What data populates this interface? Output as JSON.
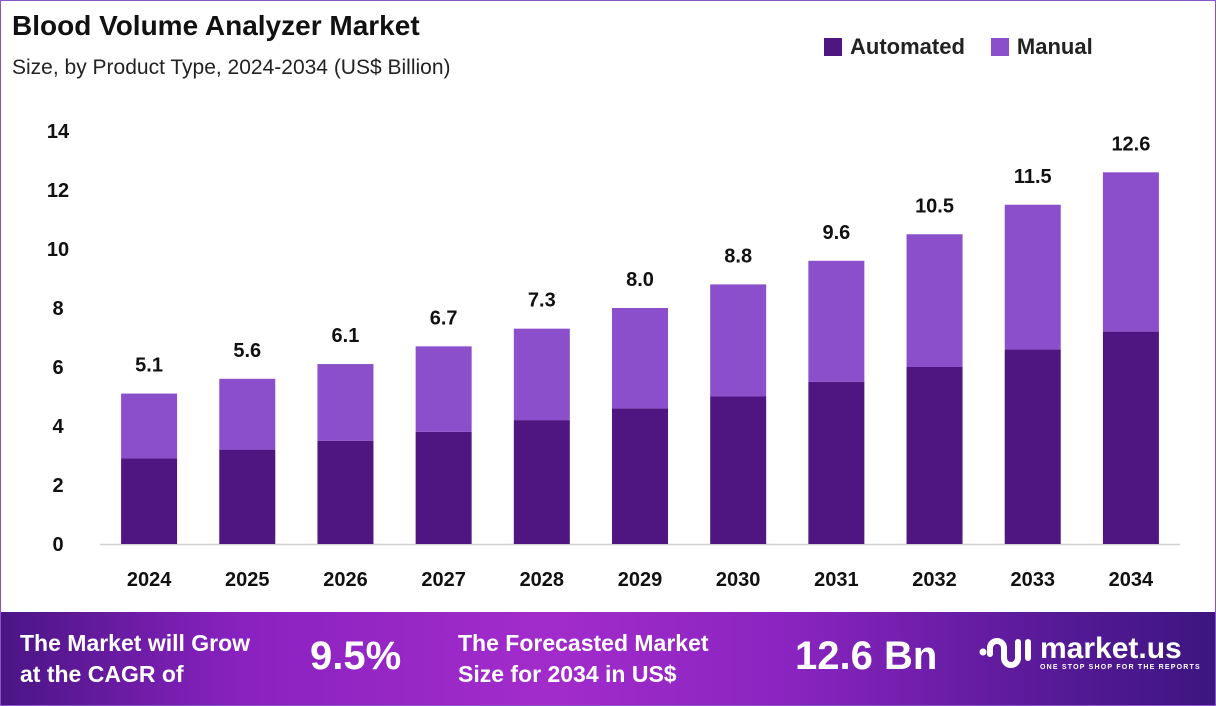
{
  "chart_data": {
    "type": "bar",
    "stacked": true,
    "title": "Blood Volume Analyzer Market",
    "subtitle": "Size, by Product Type, 2024-2034 (US$ Billion)",
    "xlabel": "",
    "ylabel": "",
    "ylim": [
      0,
      14
    ],
    "yticks": [
      0,
      2,
      4,
      6,
      8,
      10,
      12,
      14
    ],
    "grid": false,
    "legend_position": "top-right",
    "categories": [
      "2024",
      "2025",
      "2026",
      "2027",
      "2028",
      "2029",
      "2030",
      "2031",
      "2032",
      "2033",
      "2034"
    ],
    "series": [
      {
        "name": "Automated",
        "color": "#4f1581",
        "values": [
          2.9,
          3.2,
          3.5,
          3.8,
          4.2,
          4.6,
          5.0,
          5.5,
          6.0,
          6.6,
          7.2
        ]
      },
      {
        "name": "Manual",
        "color": "#8c4fcc",
        "values": [
          2.2,
          2.4,
          2.6,
          2.9,
          3.1,
          3.4,
          3.8,
          4.1,
          4.5,
          4.9,
          5.4
        ]
      }
    ],
    "totals": [
      "5.1",
      "5.6",
      "6.1",
      "6.7",
      "7.3",
      "8.0",
      "8.8",
      "9.6",
      "10.5",
      "11.5",
      "12.6"
    ]
  },
  "footer": {
    "cagr_label_1": "The Market will Grow",
    "cagr_label_2": "at the CAGR of",
    "cagr_value": "9.5%",
    "forecast_label_1": "The Forecasted Market",
    "forecast_label_2": "Size for 2034 in US$",
    "forecast_value": "12.6 Bn",
    "brand": "market.us",
    "tagline": "ONE STOP SHOP FOR THE REPORTS"
  }
}
